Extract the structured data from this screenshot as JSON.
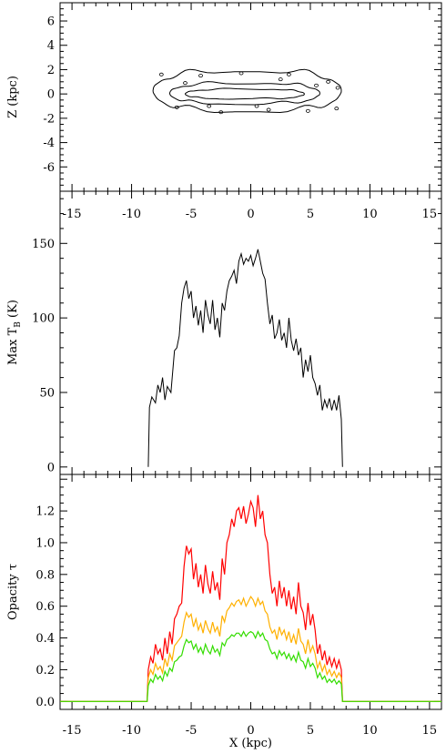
{
  "chart_data": [
    {
      "type": "contour",
      "xlabel": "",
      "ylabel": "Z (kpc)",
      "xlim": [
        -16,
        16
      ],
      "ylim": [
        -8,
        7.5
      ],
      "xticks": [
        -15,
        -10,
        -5,
        0,
        5,
        10,
        15
      ],
      "xtick_labels": [
        "-15",
        "-10",
        "-5",
        "0",
        "5",
        "10",
        "15"
      ],
      "yticks": [
        -6,
        -4,
        -2,
        0,
        2,
        4,
        6
      ],
      "ytick_labels": [
        "-6",
        "-4",
        "-2",
        "0",
        "2",
        "4",
        "6"
      ],
      "contours": [
        {
          "level": "outer",
          "x_extent": [
            -8.2,
            7.6
          ],
          "z_extent": [
            -1.4,
            1.9
          ]
        },
        {
          "level": "middle",
          "x_extent": [
            -6.8,
            5.8
          ],
          "z_extent": [
            -0.8,
            0.9
          ]
        },
        {
          "level": "inner",
          "x_extent": [
            -5.5,
            4.5
          ],
          "z_extent": [
            -0.4,
            0.4
          ]
        }
      ]
    },
    {
      "type": "line",
      "xlabel": "",
      "ylabel": "Max T",
      "ylabel_sub": "B",
      "ylabel_unit": "(K)",
      "xlim": [
        -16,
        16
      ],
      "ylim": [
        -5,
        185
      ],
      "xticks": [
        -15,
        -10,
        -5,
        0,
        5,
        10,
        15
      ],
      "xtick_labels": [
        "-15",
        "-10",
        "-5",
        "0",
        "5",
        "10",
        "15"
      ],
      "yticks": [
        0,
        50,
        100,
        150
      ],
      "ytick_labels": [
        "0",
        "50",
        "100",
        "150"
      ],
      "series": [
        {
          "color": "#000000",
          "x": [
            -8.6,
            -8.5,
            -8.3,
            -8.0,
            -7.8,
            -7.6,
            -7.4,
            -7.2,
            -7.0,
            -6.7,
            -6.4,
            -6.2,
            -6.0,
            -5.8,
            -5.6,
            -5.4,
            -5.2,
            -5.0,
            -4.8,
            -4.6,
            -4.4,
            -4.2,
            -4.0,
            -3.8,
            -3.6,
            -3.4,
            -3.2,
            -3.0,
            -2.8,
            -2.6,
            -2.4,
            -2.2,
            -2.0,
            -1.8,
            -1.6,
            -1.4,
            -1.2,
            -1.0,
            -0.8,
            -0.6,
            -0.4,
            -0.2,
            0.0,
            0.2,
            0.4,
            0.6,
            0.8,
            1.0,
            1.2,
            1.4,
            1.6,
            1.8,
            2.0,
            2.2,
            2.4,
            2.6,
            2.8,
            3.0,
            3.2,
            3.4,
            3.6,
            3.8,
            4.0,
            4.2,
            4.4,
            4.6,
            4.8,
            5.0,
            5.2,
            5.4,
            5.6,
            5.8,
            6.0,
            6.2,
            6.4,
            6.6,
            6.8,
            7.0,
            7.2,
            7.4,
            7.6,
            7.7
          ],
          "y": [
            0,
            40,
            47,
            43,
            55,
            50,
            60,
            45,
            54,
            50,
            78,
            80,
            88,
            110,
            120,
            125,
            113,
            118,
            100,
            108,
            95,
            105,
            90,
            112,
            102,
            96,
            112,
            92,
            100,
            87,
            110,
            105,
            118,
            125,
            128,
            132,
            123,
            138,
            143,
            136,
            140,
            138,
            142,
            135,
            140,
            146,
            138,
            130,
            126,
            110,
            96,
            102,
            86,
            90,
            99,
            85,
            90,
            80,
            100,
            85,
            78,
            86,
            75,
            80,
            60,
            72,
            64,
            75,
            60,
            56,
            48,
            55,
            38,
            45,
            40,
            46,
            38,
            45,
            38,
            48,
            32,
            0
          ]
        }
      ]
    },
    {
      "type": "line",
      "xlabel": "X (kpc)",
      "ylabel": "Opacity τ",
      "xlim": [
        -16,
        16
      ],
      "ylim": [
        -0.05,
        1.43
      ],
      "xticks": [
        -15,
        -10,
        -5,
        0,
        5,
        10,
        15
      ],
      "xtick_labels": [
        "-15",
        "-10",
        "-5",
        "0",
        "5",
        "10",
        "15"
      ],
      "yticks": [
        0.0,
        0.2,
        0.4,
        0.6,
        0.8,
        1.0,
        1.2
      ],
      "ytick_labels": [
        "0.0",
        "0.2",
        "0.4",
        "0.6",
        "0.8",
        "1.0",
        "1.2"
      ],
      "x": [
        -16,
        -8.7,
        -8.6,
        -8.4,
        -8.2,
        -8.0,
        -7.8,
        -7.6,
        -7.4,
        -7.2,
        -7.0,
        -6.8,
        -6.6,
        -6.4,
        -6.2,
        -6.0,
        -5.8,
        -5.6,
        -5.4,
        -5.2,
        -5.0,
        -4.8,
        -4.6,
        -4.4,
        -4.2,
        -4.0,
        -3.8,
        -3.6,
        -3.4,
        -3.2,
        -3.0,
        -2.8,
        -2.6,
        -2.4,
        -2.2,
        -2.0,
        -1.8,
        -1.6,
        -1.4,
        -1.2,
        -1.0,
        -0.8,
        -0.6,
        -0.4,
        -0.2,
        0.0,
        0.2,
        0.4,
        0.6,
        0.8,
        1.0,
        1.2,
        1.4,
        1.6,
        1.8,
        2.0,
        2.2,
        2.4,
        2.6,
        2.8,
        3.0,
        3.2,
        3.4,
        3.6,
        3.8,
        4.0,
        4.2,
        4.4,
        4.6,
        4.8,
        5.0,
        5.2,
        5.4,
        5.6,
        5.8,
        6.0,
        6.2,
        6.4,
        6.6,
        6.8,
        7.0,
        7.2,
        7.4,
        7.6,
        7.7,
        16
      ],
      "series": [
        {
          "color": "#ff0000",
          "y": [
            0,
            0,
            0.2,
            0.28,
            0.24,
            0.36,
            0.3,
            0.33,
            0.26,
            0.4,
            0.3,
            0.44,
            0.36,
            0.52,
            0.55,
            0.6,
            0.62,
            0.85,
            0.98,
            0.93,
            0.96,
            0.77,
            0.87,
            0.72,
            0.8,
            0.68,
            0.86,
            0.74,
            0.68,
            0.82,
            0.7,
            0.75,
            0.64,
            0.9,
            0.8,
            1.0,
            1.05,
            1.15,
            1.1,
            1.2,
            1.22,
            1.15,
            1.23,
            1.12,
            1.18,
            1.26,
            1.22,
            1.1,
            1.3,
            1.15,
            1.2,
            1.05,
            1.0,
            0.8,
            0.68,
            0.72,
            0.6,
            0.76,
            0.65,
            0.72,
            0.6,
            0.7,
            0.58,
            0.66,
            0.55,
            0.75,
            0.6,
            0.56,
            0.45,
            0.62,
            0.48,
            0.55,
            0.45,
            0.3,
            0.36,
            0.26,
            0.32,
            0.23,
            0.28,
            0.22,
            0.27,
            0.21,
            0.26,
            0.2,
            0,
            0
          ]
        },
        {
          "color": "#ffb000",
          "y": [
            0,
            0,
            0.15,
            0.2,
            0.17,
            0.24,
            0.2,
            0.22,
            0.18,
            0.27,
            0.22,
            0.3,
            0.26,
            0.35,
            0.37,
            0.39,
            0.41,
            0.5,
            0.56,
            0.53,
            0.55,
            0.47,
            0.52,
            0.45,
            0.49,
            0.43,
            0.51,
            0.46,
            0.43,
            0.5,
            0.44,
            0.47,
            0.41,
            0.54,
            0.5,
            0.57,
            0.59,
            0.62,
            0.6,
            0.63,
            0.64,
            0.61,
            0.65,
            0.6,
            0.63,
            0.66,
            0.64,
            0.6,
            0.65,
            0.61,
            0.63,
            0.57,
            0.55,
            0.47,
            0.43,
            0.45,
            0.39,
            0.47,
            0.42,
            0.45,
            0.39,
            0.44,
            0.37,
            0.42,
            0.36,
            0.46,
            0.38,
            0.36,
            0.3,
            0.39,
            0.31,
            0.35,
            0.3,
            0.21,
            0.25,
            0.19,
            0.23,
            0.17,
            0.2,
            0.16,
            0.19,
            0.15,
            0.18,
            0.15,
            0,
            0
          ]
        },
        {
          "color": "#33dd00",
          "y": [
            0,
            0,
            0.1,
            0.14,
            0.12,
            0.17,
            0.14,
            0.16,
            0.13,
            0.19,
            0.16,
            0.21,
            0.19,
            0.25,
            0.26,
            0.28,
            0.29,
            0.35,
            0.39,
            0.37,
            0.38,
            0.33,
            0.36,
            0.31,
            0.34,
            0.3,
            0.36,
            0.32,
            0.3,
            0.35,
            0.31,
            0.33,
            0.29,
            0.37,
            0.35,
            0.39,
            0.4,
            0.42,
            0.41,
            0.43,
            0.43,
            0.41,
            0.44,
            0.41,
            0.43,
            0.44,
            0.43,
            0.4,
            0.44,
            0.41,
            0.43,
            0.39,
            0.38,
            0.33,
            0.3,
            0.31,
            0.27,
            0.32,
            0.29,
            0.31,
            0.27,
            0.3,
            0.26,
            0.29,
            0.25,
            0.31,
            0.26,
            0.25,
            0.21,
            0.27,
            0.22,
            0.24,
            0.21,
            0.15,
            0.18,
            0.14,
            0.16,
            0.12,
            0.14,
            0.12,
            0.14,
            0.11,
            0.13,
            0.11,
            0,
            0
          ]
        }
      ]
    }
  ]
}
